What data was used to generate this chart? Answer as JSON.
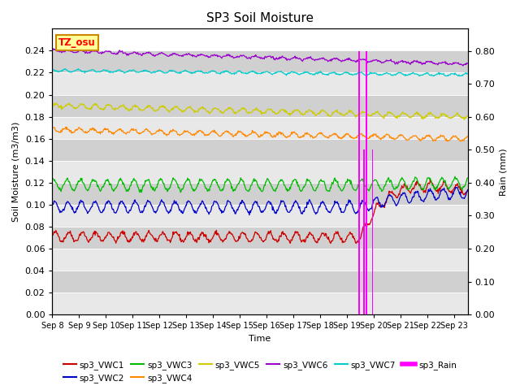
{
  "title": "SP3 Soil Moisture",
  "xlabel": "Time",
  "ylabel_left": "Soil Moisture (m3/m3)",
  "ylabel_right": "Rain (mm)",
  "ylim_left": [
    0.0,
    0.26
  ],
  "ylim_right": [
    0.0,
    0.867
  ],
  "colors": {
    "sp3_VWC1": "#cc0000",
    "sp3_VWC2": "#0000cc",
    "sp3_VWC3": "#00bb00",
    "sp3_VWC4": "#ff8800",
    "sp3_VWC5": "#cccc00",
    "sp3_VWC6": "#9900cc",
    "sp3_VWC7": "#00cccc",
    "sp3_Rain": "#ff00ff"
  },
  "bg_light": "#e8e8e8",
  "bg_dark": "#d0d0d0",
  "annotation_label": "TZ_osu",
  "annotation_bg": "#ffff99",
  "annotation_border": "#cc8800",
  "xtick_labels": [
    "Sep 8",
    "Sep 9",
    "Sep 10",
    "Sep 11",
    "Sep 12",
    "Sep 13",
    "Sep 14",
    "Sep 15",
    "Sep 16",
    "Sep 17",
    "Sep 18",
    "Sep 19",
    "Sep 20",
    "Sep 21",
    "Sep 22",
    "Sep 23"
  ],
  "yticks_left": [
    0.0,
    0.02,
    0.04,
    0.06,
    0.08,
    0.1,
    0.12,
    0.14,
    0.16,
    0.18,
    0.2,
    0.22,
    0.24
  ],
  "yticks_right": [
    0.0,
    0.1,
    0.2,
    0.3,
    0.4,
    0.5,
    0.6,
    0.7,
    0.8
  ]
}
